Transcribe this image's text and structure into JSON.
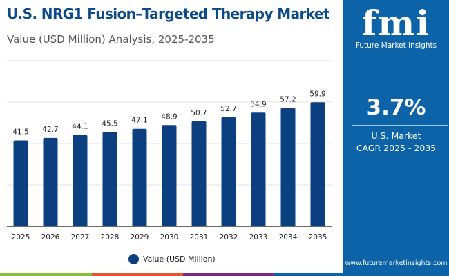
{
  "header": {
    "title": "U.S. NRG1 Fusion–Targeted Therapy Market",
    "subtitle": "Value (USD Million) Analysis, 2025-2035"
  },
  "sidepanel": {
    "logo_text": "fmi",
    "logo_subtext": "Future Market Insights",
    "cagr_value": "3.7%",
    "cagr_label_line1": "U.S. Market",
    "cagr_label_line2": "CAGR 2025 - 2035",
    "website": "www.futuremarketinsights.com",
    "background_color": "#0d63a8"
  },
  "chart_data": {
    "type": "bar",
    "categories": [
      "2025",
      "2026",
      "2027",
      "2028",
      "2029",
      "2030",
      "2031",
      "2032",
      "2033",
      "2034",
      "2035"
    ],
    "series": [
      {
        "name": "Value (USD Million)",
        "values": [
          41.5,
          42.7,
          44.1,
          45.5,
          47.1,
          48.9,
          50.7,
          52.7,
          54.9,
          57.2,
          59.9
        ],
        "color": "#0b3f7f"
      }
    ],
    "ylim": [
      0,
      80
    ],
    "grid": true,
    "legend_position": "bottom",
    "data_labels": [
      "41.5",
      "42.7",
      "44.1",
      "45.5",
      "47.1",
      "48.9",
      "50.7",
      "52.7",
      "54.9",
      "57.2",
      "59.9"
    ]
  },
  "footer": {
    "stripe_colors": [
      "#8bbd3e",
      "#e5562a",
      "#7b2a86",
      "#0d63a8"
    ]
  }
}
